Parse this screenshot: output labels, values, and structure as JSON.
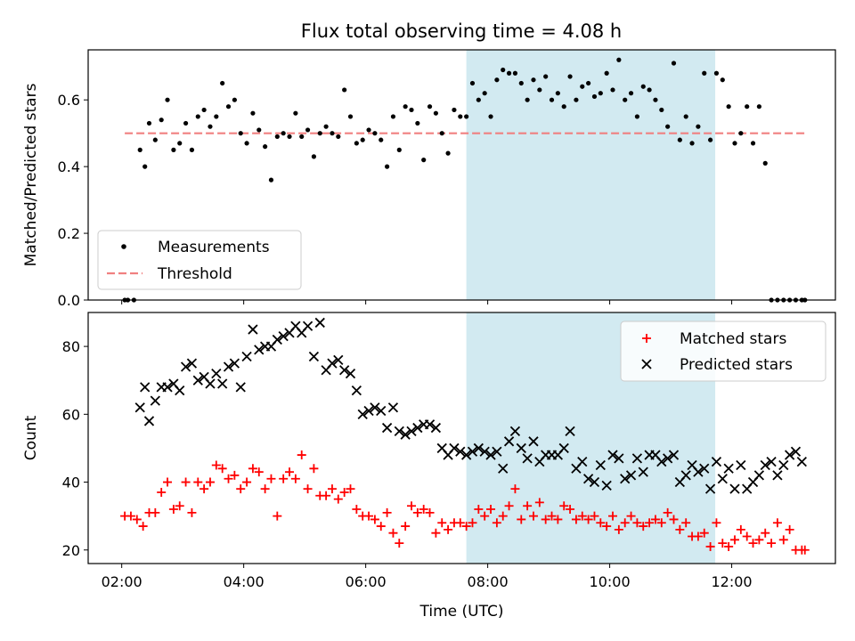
{
  "title": "Flux total observing time = 4.08 h",
  "colors": {
    "measurement": "#000000",
    "threshold": "#f08080",
    "matched": "#ff0000",
    "predicted": "#000000",
    "highlight": "#add8e6"
  },
  "chart_data": [
    {
      "type": "scatter",
      "ylabel": "Matched/Predicted stars",
      "ylim": [
        0,
        0.75
      ],
      "xlim": [
        1.45,
        13.7
      ],
      "highlight_range": [
        7.65,
        11.73
      ],
      "yticks": [
        0.0,
        0.2,
        0.4,
        0.6
      ],
      "ytick_labels": [
        "0.0",
        "0.2",
        "0.4",
        "0.6"
      ],
      "threshold": {
        "name": "Threshold",
        "y": 0.5,
        "x_range": [
          2.05,
          13.2
        ]
      },
      "legend": {
        "placement": "lower-left",
        "entries": [
          "Measurements",
          "Threshold"
        ]
      },
      "series": [
        {
          "name": "Measurements",
          "x": [
            2.05,
            2.1,
            2.2,
            2.3,
            2.38,
            2.45,
            2.55,
            2.65,
            2.75,
            2.85,
            2.95,
            3.05,
            3.15,
            3.25,
            3.35,
            3.45,
            3.55,
            3.65,
            3.75,
            3.85,
            3.95,
            4.05,
            4.15,
            4.25,
            4.35,
            4.45,
            4.55,
            4.65,
            4.75,
            4.85,
            4.95,
            5.05,
            5.15,
            5.25,
            5.35,
            5.45,
            5.55,
            5.65,
            5.75,
            5.85,
            5.95,
            6.05,
            6.15,
            6.25,
            6.35,
            6.45,
            6.55,
            6.65,
            6.75,
            6.85,
            6.95,
            7.05,
            7.15,
            7.25,
            7.35,
            7.45,
            7.55,
            7.65,
            7.75,
            7.85,
            7.95,
            8.05,
            8.15,
            8.25,
            8.35,
            8.45,
            8.55,
            8.65,
            8.75,
            8.85,
            8.95,
            9.05,
            9.15,
            9.25,
            9.35,
            9.45,
            9.55,
            9.65,
            9.75,
            9.85,
            9.95,
            10.05,
            10.15,
            10.25,
            10.35,
            10.45,
            10.55,
            10.65,
            10.75,
            10.85,
            10.95,
            11.05,
            11.15,
            11.25,
            11.35,
            11.45,
            11.55,
            11.65,
            11.75,
            11.85,
            11.95,
            12.05,
            12.15,
            12.25,
            12.35,
            12.45,
            12.55,
            12.65,
            12.75,
            12.85,
            12.95,
            13.05,
            13.15,
            13.2
          ],
          "y": [
            0.0,
            0.0,
            0.0,
            0.45,
            0.4,
            0.53,
            0.48,
            0.54,
            0.6,
            0.45,
            0.47,
            0.53,
            0.45,
            0.55,
            0.57,
            0.52,
            0.55,
            0.65,
            0.58,
            0.6,
            0.5,
            0.47,
            0.56,
            0.51,
            0.46,
            0.36,
            0.49,
            0.5,
            0.49,
            0.56,
            0.49,
            0.51,
            0.43,
            0.5,
            0.52,
            0.5,
            0.49,
            0.63,
            0.55,
            0.47,
            0.48,
            0.51,
            0.5,
            0.48,
            0.4,
            0.55,
            0.45,
            0.58,
            0.57,
            0.53,
            0.42,
            0.58,
            0.56,
            0.5,
            0.44,
            0.57,
            0.55,
            0.55,
            0.65,
            0.6,
            0.62,
            0.55,
            0.66,
            0.69,
            0.68,
            0.68,
            0.65,
            0.6,
            0.66,
            0.63,
            0.67,
            0.6,
            0.62,
            0.58,
            0.67,
            0.6,
            0.64,
            0.65,
            0.61,
            0.62,
            0.68,
            0.63,
            0.72,
            0.6,
            0.62,
            0.55,
            0.64,
            0.63,
            0.6,
            0.57,
            0.52,
            0.71,
            0.48,
            0.55,
            0.47,
            0.52,
            0.68,
            0.48,
            0.68,
            0.66,
            0.58,
            0.47,
            0.5,
            0.58,
            0.47,
            0.58,
            0.41,
            0.0,
            0.0,
            0.0,
            0.0,
            0.0,
            0.0,
            0.0
          ]
        }
      ]
    },
    {
      "type": "scatter",
      "xlabel": "Time (UTC)",
      "ylabel": "Count",
      "ylim": [
        16,
        90
      ],
      "xlim": [
        1.45,
        13.7
      ],
      "highlight_range": [
        7.65,
        11.73
      ],
      "yticks": [
        20,
        40,
        60,
        80
      ],
      "ytick_labels": [
        "20",
        "40",
        "60",
        "80"
      ],
      "xticks": [
        2,
        4,
        6,
        8,
        10,
        12
      ],
      "xtick_labels": [
        "02:00",
        "04:00",
        "06:00",
        "08:00",
        "10:00",
        "12:00"
      ],
      "legend": {
        "placement": "top-right",
        "entries": [
          "Matched stars",
          "Predicted stars"
        ]
      },
      "series": [
        {
          "name": "Matched stars",
          "x": [
            2.05,
            2.15,
            2.25,
            2.35,
            2.45,
            2.55,
            2.65,
            2.75,
            2.85,
            2.95,
            3.05,
            3.15,
            3.25,
            3.35,
            3.45,
            3.55,
            3.65,
            3.75,
            3.85,
            3.95,
            4.05,
            4.15,
            4.25,
            4.35,
            4.45,
            4.55,
            4.65,
            4.75,
            4.85,
            4.95,
            5.05,
            5.15,
            5.25,
            5.35,
            5.45,
            5.55,
            5.65,
            5.75,
            5.85,
            5.95,
            6.05,
            6.15,
            6.25,
            6.35,
            6.45,
            6.55,
            6.65,
            6.75,
            6.85,
            6.95,
            7.05,
            7.15,
            7.25,
            7.35,
            7.45,
            7.55,
            7.65,
            7.75,
            7.85,
            7.95,
            8.05,
            8.15,
            8.25,
            8.35,
            8.45,
            8.55,
            8.65,
            8.75,
            8.85,
            8.95,
            9.05,
            9.15,
            9.25,
            9.35,
            9.45,
            9.55,
            9.65,
            9.75,
            9.85,
            9.95,
            10.05,
            10.15,
            10.25,
            10.35,
            10.45,
            10.55,
            10.65,
            10.75,
            10.85,
            10.95,
            11.05,
            11.15,
            11.25,
            11.35,
            11.45,
            11.55,
            11.65,
            11.75,
            11.85,
            11.95,
            12.05,
            12.15,
            12.25,
            12.35,
            12.45,
            12.55,
            12.65,
            12.75,
            12.85,
            12.95,
            13.05,
            13.15,
            13.2
          ],
          "y": [
            30,
            30,
            29,
            27,
            31,
            31,
            37,
            40,
            32,
            33,
            40,
            31,
            40,
            38,
            40,
            45,
            44,
            41,
            42,
            38,
            40,
            44,
            43,
            38,
            41,
            30,
            41,
            43,
            41,
            48,
            38,
            44,
            36,
            36,
            38,
            35,
            37,
            38,
            32,
            30,
            30,
            29,
            27,
            31,
            25,
            22,
            27,
            33,
            31,
            32,
            31,
            25,
            28,
            26,
            28,
            28,
            27,
            28,
            32,
            30,
            32,
            28,
            30,
            33,
            38,
            29,
            33,
            30,
            34,
            29,
            30,
            29,
            33,
            32,
            29,
            30,
            29,
            30,
            28,
            27,
            30,
            26,
            28,
            30,
            28,
            27,
            28,
            29,
            28,
            31,
            29,
            26,
            28,
            24,
            24,
            25,
            21,
            28,
            22,
            21,
            23,
            26,
            24,
            22,
            23,
            25,
            22,
            28,
            23,
            26,
            20,
            20,
            20
          ]
        },
        {
          "name": "Predicted stars",
          "x": [
            2.3,
            2.38,
            2.45,
            2.55,
            2.65,
            2.75,
            2.85,
            2.95,
            3.05,
            3.15,
            3.25,
            3.35,
            3.45,
            3.55,
            3.65,
            3.75,
            3.85,
            3.95,
            4.05,
            4.15,
            4.25,
            4.35,
            4.45,
            4.55,
            4.65,
            4.75,
            4.85,
            4.95,
            5.05,
            5.15,
            5.25,
            5.35,
            5.45,
            5.55,
            5.65,
            5.75,
            5.85,
            5.95,
            6.05,
            6.15,
            6.25,
            6.35,
            6.45,
            6.55,
            6.65,
            6.75,
            6.85,
            6.95,
            7.05,
            7.15,
            7.25,
            7.35,
            7.45,
            7.55,
            7.65,
            7.75,
            7.85,
            7.95,
            8.05,
            8.15,
            8.25,
            8.35,
            8.45,
            8.55,
            8.65,
            8.75,
            8.85,
            8.95,
            9.05,
            9.15,
            9.25,
            9.35,
            9.45,
            9.55,
            9.65,
            9.75,
            9.85,
            9.95,
            10.05,
            10.15,
            10.25,
            10.35,
            10.45,
            10.55,
            10.65,
            10.75,
            10.85,
            10.95,
            11.05,
            11.15,
            11.25,
            11.35,
            11.45,
            11.55,
            11.65,
            11.75,
            11.85,
            11.95,
            12.05,
            12.15,
            12.25,
            12.35,
            12.45,
            12.55,
            12.65,
            12.75,
            12.85,
            12.95,
            13.05,
            13.15
          ],
          "y": [
            62,
            68,
            58,
            64,
            68,
            68,
            69,
            67,
            74,
            75,
            70,
            71,
            69,
            72,
            69,
            74,
            75,
            68,
            77,
            85,
            79,
            80,
            80,
            82,
            83,
            84,
            86,
            84,
            86,
            77,
            87,
            73,
            75,
            76,
            73,
            72,
            67,
            60,
            61,
            62,
            61,
            56,
            62,
            55,
            54,
            55,
            56,
            57,
            57,
            56,
            50,
            48,
            50,
            49,
            48,
            49,
            50,
            49,
            48,
            49,
            44,
            52,
            55,
            50,
            47,
            52,
            46,
            48,
            48,
            48,
            50,
            55,
            44,
            46,
            41,
            40,
            45,
            39,
            48,
            47,
            41,
            42,
            47,
            43,
            48,
            48,
            46,
            47,
            48,
            40,
            42,
            45,
            43,
            44,
            38,
            46,
            41,
            44,
            38,
            45,
            38,
            40,
            42,
            45,
            46,
            42,
            45,
            48,
            49,
            46
          ]
        }
      ]
    }
  ]
}
